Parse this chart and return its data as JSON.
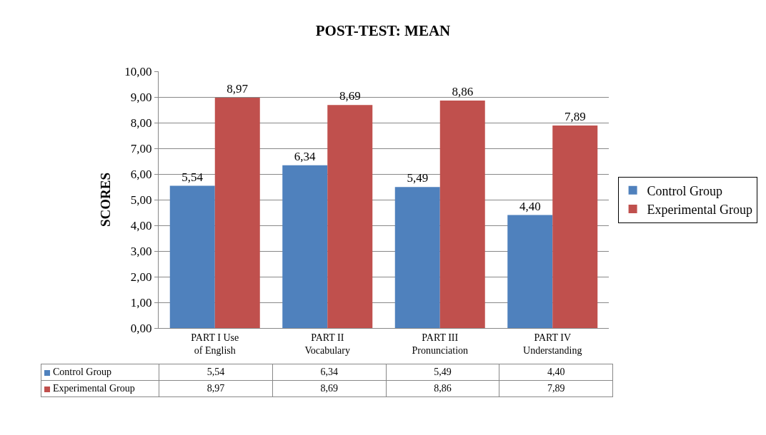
{
  "chart_data": {
    "type": "bar",
    "title": "POST-TEST: MEAN",
    "ylabel": "SCORES",
    "categories": [
      "PART I Use of English",
      "PART II Vocabulary",
      "PART III Pronunciation",
      "PART IV Understanding"
    ],
    "series": [
      {
        "name": "Control Group",
        "color": "#4f81bd",
        "values": [
          5.54,
          6.34,
          5.49,
          4.4
        ],
        "value_labels": [
          "5,54",
          "6,34",
          "5,49",
          "4,40"
        ]
      },
      {
        "name": "Experimental Group",
        "color": "#c0504d",
        "values": [
          8.97,
          8.69,
          8.86,
          7.89
        ],
        "value_labels": [
          "8,97",
          "8,69",
          "8,86",
          "7,89"
        ]
      }
    ],
    "ylim": [
      0,
      10
    ],
    "yticks": [
      {
        "value": 0,
        "label": "0,00"
      },
      {
        "value": 1,
        "label": "1,00"
      },
      {
        "value": 2,
        "label": "2,00"
      },
      {
        "value": 3,
        "label": "3,00"
      },
      {
        "value": 4,
        "label": "4,00"
      },
      {
        "value": 5,
        "label": "5,00"
      },
      {
        "value": 6,
        "label": "6,00"
      },
      {
        "value": 7,
        "label": "7,00"
      },
      {
        "value": 8,
        "label": "8,00"
      },
      {
        "value": 9,
        "label": "9,00"
      },
      {
        "value": 10,
        "label": "10,00"
      }
    ],
    "grid": "y",
    "legend": "right"
  }
}
